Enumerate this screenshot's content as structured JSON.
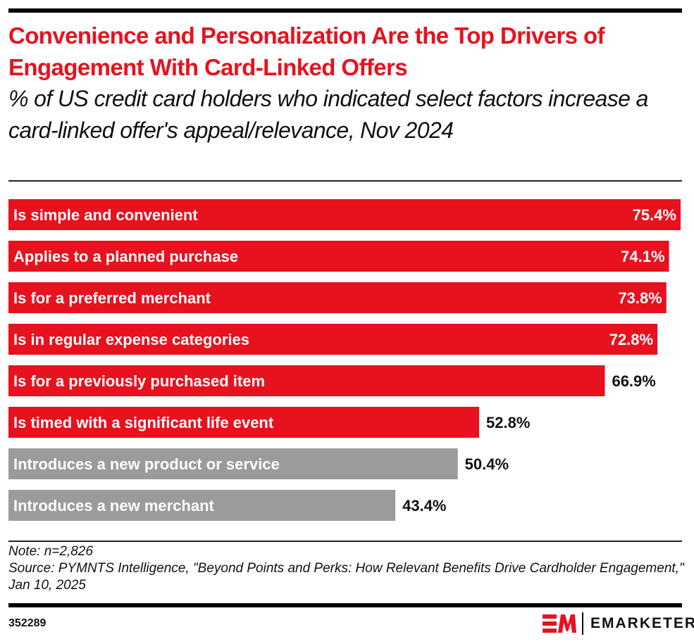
{
  "title": "Convenience and Personalization Are the Top Drivers of Engagement With Card-Linked Offers",
  "subtitle": "% of US credit card holders who indicated select factors increase a card-linked offer's appeal/relevance, Nov 2024",
  "notes": {
    "note": "Note: n=2,826",
    "source": "Source: PYMNTS Intelligence, \"Beyond Points and Perks: How Relevant Benefits Drive Cardholder Engagement,\" Jan 10, 2025"
  },
  "footer": {
    "chart_id": "352289",
    "brand": "EMARKETER"
  },
  "colors": {
    "highlight": "#e8111e",
    "muted": "#9b9b9b",
    "text": "#111111"
  },
  "chart_data": {
    "type": "bar",
    "orientation": "horizontal",
    "categories": [
      "Is simple and convenient",
      "Applies to a planned purchase",
      "Is for a preferred merchant",
      "Is in regular expense categories",
      "Is for a previously purchased item",
      "Is timed with a significant life event",
      "Introduces a new product or service",
      "Introduces a new merchant"
    ],
    "values": [
      75.4,
      74.1,
      73.8,
      72.8,
      66.9,
      52.8,
      50.4,
      43.4
    ],
    "value_labels": [
      "75.4%",
      "74.1%",
      "73.8%",
      "72.8%",
      "66.9%",
      "52.8%",
      "50.4%",
      "43.4%"
    ],
    "bar_colors": [
      "#e8111e",
      "#e8111e",
      "#e8111e",
      "#e8111e",
      "#e8111e",
      "#e8111e",
      "#9b9b9b",
      "#9b9b9b"
    ],
    "xlim": [
      0,
      75.4
    ],
    "grid": false,
    "legend": "none"
  }
}
